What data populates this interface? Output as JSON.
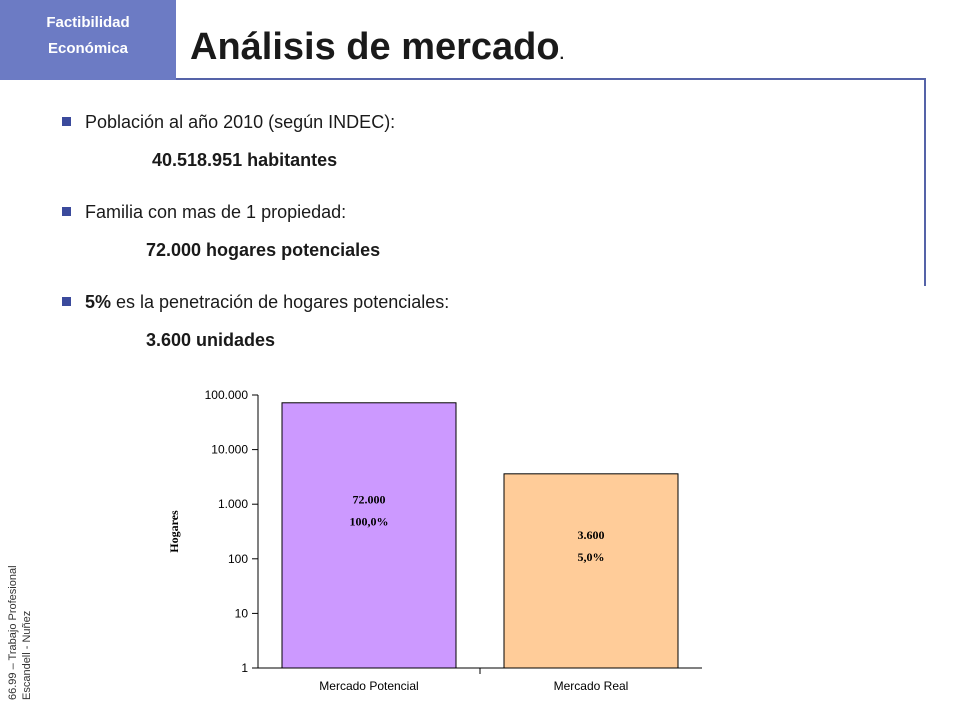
{
  "header": {
    "tag_line1": "Factibilidad",
    "tag_line2": "Económica",
    "title": "Análisis de mercado",
    "title_dot": "."
  },
  "bullets": [
    {
      "text": "Población al año 2010 (según INDEC):",
      "value": "40.518.951 habitantes"
    },
    {
      "text": "Familia con mas de 1 propiedad:",
      "value": "72.000 hogares potenciales"
    },
    {
      "text_bold": "5%",
      "text": " es la penetración de hogares potenciales:",
      "value": "3.600 unidades"
    }
  ],
  "side_note": {
    "line1": "66.99 – Trabajo Profesional",
    "line2": "Escandell - Nuñez"
  },
  "chart_data": {
    "type": "bar",
    "scale": "log",
    "ylabel": "Hogares",
    "ylim": [
      1,
      100000
    ],
    "yticks": [
      1,
      10,
      100,
      1000,
      10000,
      100000
    ],
    "ytick_labels": [
      "1",
      "10",
      "100",
      "1.000",
      "10.000",
      "100.000"
    ],
    "categories": [
      "Mercado Potencial",
      "Mercado Real"
    ],
    "values": [
      72000,
      3600
    ],
    "value_labels": [
      "72.000",
      "3.600"
    ],
    "percent_labels": [
      "100,0%",
      "5,0%"
    ],
    "colors": [
      "#cc99ff",
      "#ffcc99"
    ]
  }
}
